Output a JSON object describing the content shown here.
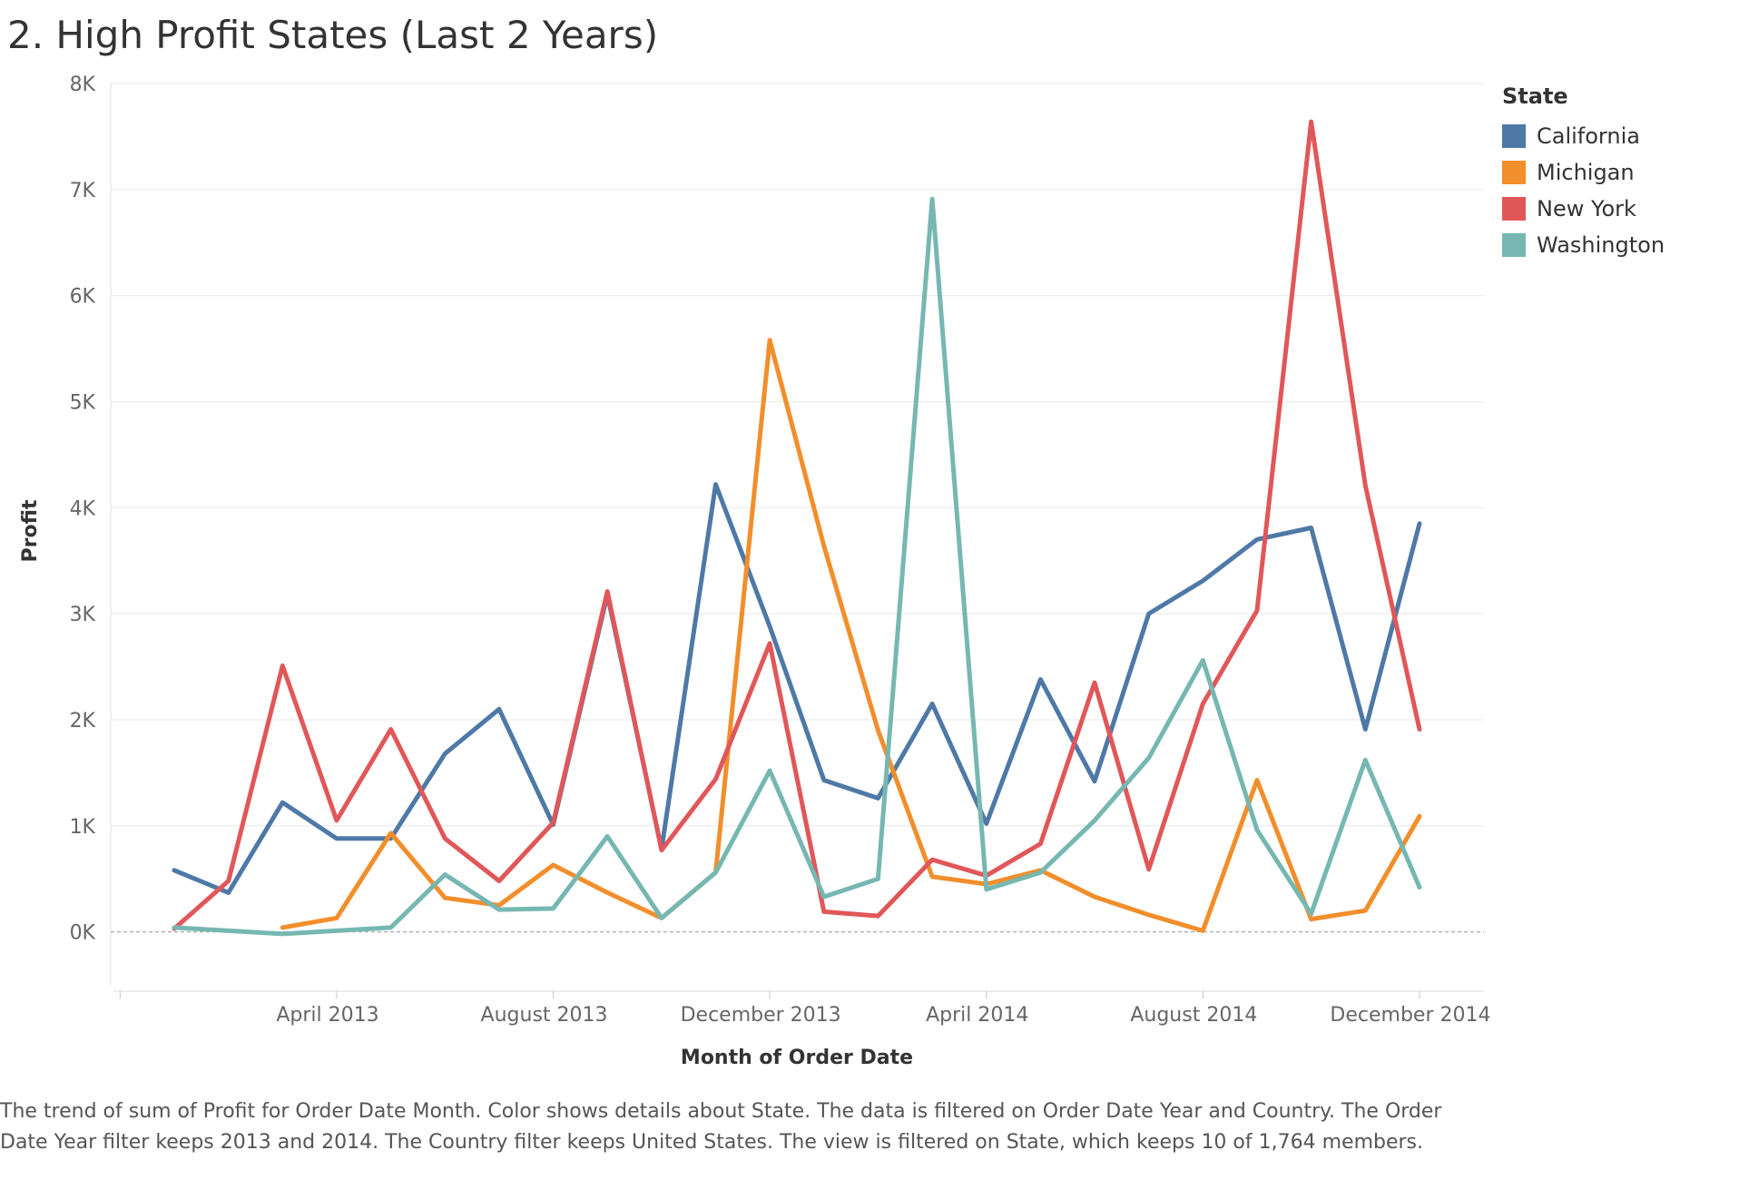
{
  "chart_data": {
    "type": "line",
    "title": "2. High Profit States (Last 2 Years)",
    "xlabel": "Month of Order Date",
    "ylabel": "Profit",
    "ylim": [
      -500,
      8000
    ],
    "y_ticks": [
      {
        "value": 0,
        "label": "0K"
      },
      {
        "value": 1000,
        "label": "1K"
      },
      {
        "value": 2000,
        "label": "2K"
      },
      {
        "value": 3000,
        "label": "3K"
      },
      {
        "value": 4000,
        "label": "4K"
      },
      {
        "value": 5000,
        "label": "5K"
      },
      {
        "value": 6000,
        "label": "6K"
      },
      {
        "value": 7000,
        "label": "7K"
      },
      {
        "value": 8000,
        "label": "8K"
      }
    ],
    "x_ticks": [
      {
        "index": 3,
        "label": "April 2013"
      },
      {
        "index": 7,
        "label": "August 2013"
      },
      {
        "index": 11,
        "label": "December 2013"
      },
      {
        "index": 15,
        "label": "April 2014"
      },
      {
        "index": 19,
        "label": "August 2014"
      },
      {
        "index": 23,
        "label": "December 2014"
      }
    ],
    "categories": [
      "Jan 2013",
      "Feb 2013",
      "Mar 2013",
      "Apr 2013",
      "May 2013",
      "Jun 2013",
      "Jul 2013",
      "Aug 2013",
      "Sep 2013",
      "Oct 2013",
      "Nov 2013",
      "Dec 2013",
      "Jan 2014",
      "Feb 2014",
      "Mar 2014",
      "Apr 2014",
      "May 2014",
      "Jun 2014",
      "Jul 2014",
      "Aug 2014",
      "Sep 2014",
      "Oct 2014",
      "Nov 2014",
      "Dec 2014"
    ],
    "legend_title": "State",
    "series": [
      {
        "name": "California",
        "color": "#4e79a7",
        "values": [
          580,
          370,
          1220,
          880,
          880,
          1680,
          2100,
          1010,
          3180,
          780,
          4220,
          2880,
          1430,
          1260,
          2150,
          1020,
          2380,
          1420,
          3000,
          3310,
          3700,
          3810,
          1910,
          3850
        ]
      },
      {
        "name": "Michigan",
        "color": "#f28e2b",
        "values": [
          null,
          null,
          40,
          130,
          930,
          320,
          250,
          630,
          370,
          130,
          560,
          5580,
          3640,
          1900,
          520,
          450,
          580,
          330,
          160,
          10,
          1430,
          120,
          200,
          1090
        ]
      },
      {
        "name": "New York",
        "color": "#e15759",
        "values": [
          30,
          480,
          2510,
          1050,
          1910,
          880,
          480,
          1030,
          3210,
          770,
          1440,
          2720,
          190,
          150,
          680,
          530,
          830,
          2350,
          590,
          2150,
          3030,
          7640,
          4210,
          1910
        ]
      },
      {
        "name": "Washington",
        "color": "#76b7b2",
        "values": [
          40,
          10,
          -20,
          10,
          40,
          540,
          210,
          220,
          900,
          130,
          560,
          1520,
          330,
          500,
          6910,
          400,
          560,
          1050,
          1640,
          2560,
          960,
          170,
          1620,
          420
        ]
      }
    ]
  },
  "caption": "The trend of sum of Profit for Order Date Month.  Color shows details about State. The data is filtered on Order Date Year and Country. The Order Date Year filter keeps 2013 and 2014. The Country filter keeps United States. The view is filtered on State, which keeps 10 of 1,764 members."
}
